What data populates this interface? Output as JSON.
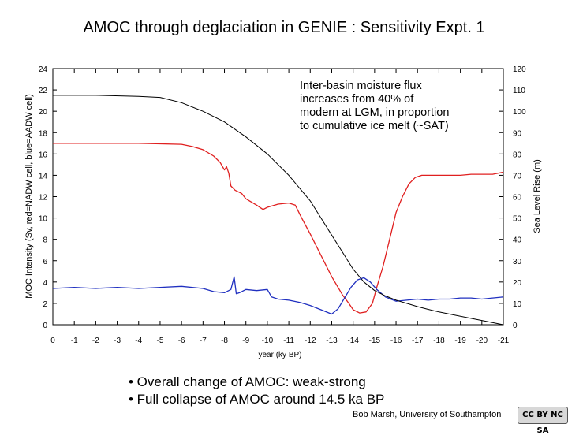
{
  "title": "AMOC through deglaciation in GENIE : Sensitivity Expt. 1",
  "annotation": [
    "Inter-basin moisture flux",
    "increases from 40% of",
    "modern at LGM, in proportion",
    "to cumulative ice melt (~SAT)"
  ],
  "bullets": [
    "• Overall change of AMOC: weak-strong",
    "• Full collapse of AMOC around 14.5 ka BP"
  ],
  "credit": "Bob Marsh, University of Southampton",
  "license_badge": "CC BY NC SA",
  "chart_data": {
    "type": "line",
    "xlabel": "year (ky BP)",
    "ylabel": "MOC Intensity (Sv, red=NADW cell, blue=AADW cell)",
    "y2label": "Sea Level Rise (m)",
    "xlim": [
      0,
      -21
    ],
    "ylim": [
      0,
      24
    ],
    "y2lim": [
      0,
      120
    ],
    "x_ticks": [
      0,
      -1,
      -2,
      -3,
      -4,
      -5,
      -6,
      -7,
      -8,
      -9,
      -10,
      -11,
      -12,
      -13,
      -14,
      -15,
      -16,
      -17,
      -18,
      -19,
      -20,
      -21
    ],
    "y_ticks": [
      0,
      2,
      4,
      6,
      8,
      10,
      12,
      14,
      16,
      18,
      20,
      22,
      24
    ],
    "y2_ticks": [
      0,
      10,
      20,
      30,
      40,
      50,
      60,
      70,
      80,
      90,
      100,
      110,
      120
    ],
    "series": [
      {
        "axis": "left",
        "color": "#e02020",
        "x": [
          0,
          -2,
          -4,
          -6,
          -6.5,
          -7,
          -7.5,
          -7.8,
          -8.0,
          -8.1,
          -8.2,
          -8.3,
          -8.5,
          -8.8,
          -9.0,
          -9.5,
          -9.8,
          -10.0,
          -10.5,
          -11.0,
          -11.3,
          -11.6,
          -12.0,
          -12.5,
          -13.0,
          -13.5,
          -13.8,
          -14.0,
          -14.3,
          -14.6,
          -14.9,
          -15.1,
          -15.4,
          -15.7,
          -16.0,
          -16.3,
          -16.6,
          -16.9,
          -17.2,
          -17.5,
          -18.0,
          -18.5,
          -19.0,
          -19.5,
          -20.0,
          -20.5,
          -21.0
        ],
        "y": [
          17.0,
          17.0,
          17.0,
          16.9,
          16.7,
          16.4,
          15.8,
          15.2,
          14.5,
          14.8,
          14.2,
          13.0,
          12.6,
          12.3,
          11.8,
          11.2,
          10.8,
          11.0,
          11.3,
          11.4,
          11.2,
          10.0,
          8.5,
          6.5,
          4.5,
          2.8,
          2.0,
          1.4,
          1.1,
          1.2,
          2.0,
          3.5,
          5.5,
          8.0,
          10.5,
          12.0,
          13.2,
          13.8,
          14.0,
          14.0,
          14.0,
          14.0,
          14.0,
          14.1,
          14.1,
          14.1,
          14.3
        ]
      },
      {
        "axis": "left",
        "color": "#2030c0",
        "x": [
          0,
          -1,
          -2,
          -3,
          -4,
          -5,
          -6,
          -7,
          -7.5,
          -8.0,
          -8.3,
          -8.45,
          -8.55,
          -8.7,
          -9.0,
          -9.5,
          -10.0,
          -10.2,
          -10.5,
          -11.0,
          -11.5,
          -12.0,
          -12.5,
          -13.0,
          -13.3,
          -13.6,
          -13.9,
          -14.2,
          -14.5,
          -14.8,
          -15.1,
          -15.5,
          -16.0,
          -16.5,
          -17.0,
          -17.5,
          -18.0,
          -18.5,
          -19.0,
          -19.5,
          -20.0,
          -20.5,
          -21.0
        ],
        "y": [
          3.4,
          3.5,
          3.4,
          3.5,
          3.4,
          3.5,
          3.6,
          3.4,
          3.1,
          3.0,
          3.3,
          4.5,
          2.9,
          3.0,
          3.3,
          3.2,
          3.3,
          2.6,
          2.4,
          2.3,
          2.1,
          1.8,
          1.4,
          1.0,
          1.5,
          2.5,
          3.5,
          4.2,
          4.4,
          4.0,
          3.3,
          2.6,
          2.2,
          2.3,
          2.4,
          2.3,
          2.4,
          2.4,
          2.5,
          2.5,
          2.4,
          2.5,
          2.6
        ]
      },
      {
        "axis": "right",
        "color": "#000000",
        "x": [
          0,
          -2,
          -4,
          -5,
          -6,
          -7,
          -8,
          -9,
          -10,
          -11,
          -12,
          -12.5,
          -13,
          -13.5,
          -14,
          -14.5,
          -15,
          -15.5,
          -16,
          -16.5,
          -17,
          -17.5,
          -18,
          -19,
          -20,
          -21
        ],
        "y": [
          107.5,
          107.5,
          107,
          106.5,
          104,
          100,
          95,
          88,
          80,
          70,
          58,
          50,
          42,
          34,
          26,
          20,
          16,
          13.5,
          11.5,
          10,
          8.5,
          7.2,
          6,
          4,
          2,
          0
        ]
      }
    ]
  }
}
